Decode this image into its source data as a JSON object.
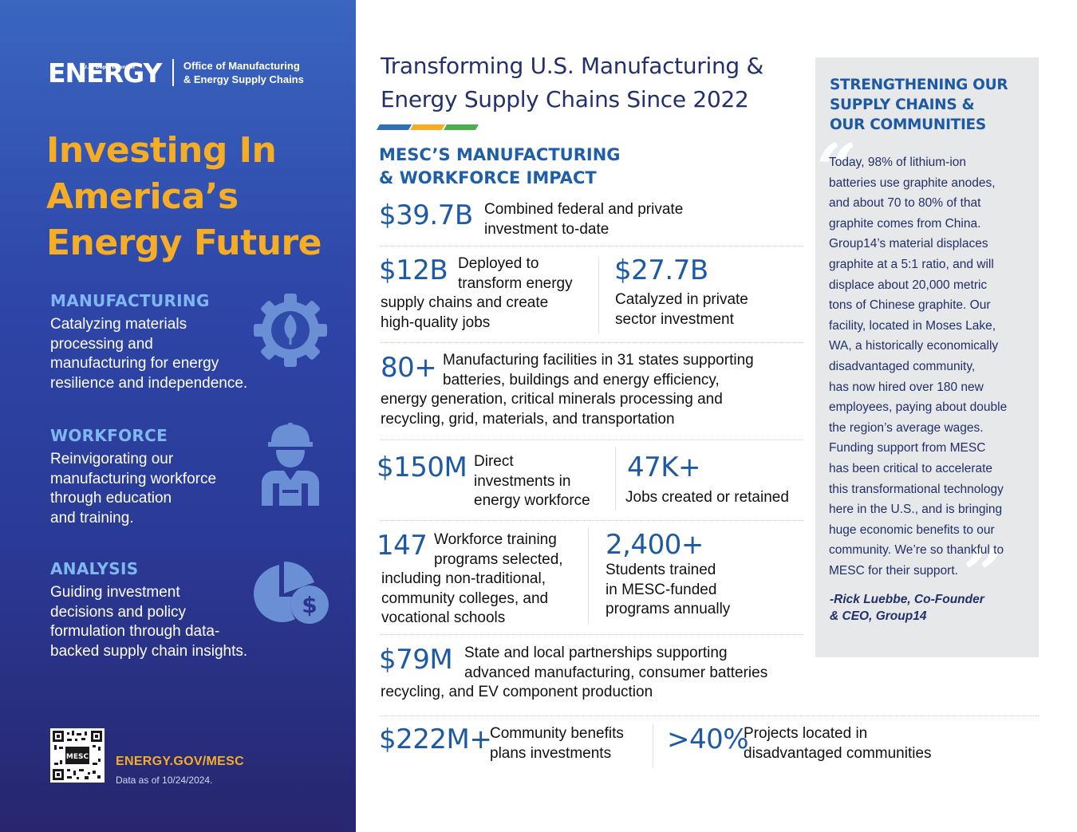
{
  "colors": {
    "accent_orange": "#f6ad26",
    "accent_blue": "#1e5aa3",
    "navy": "#24306b",
    "light_blue": "#7fb8f0"
  },
  "logo": {
    "dept": "U.S. Department of",
    "energy": "ENERGY",
    "office_line1": "Office of Manufacturing",
    "office_line2": "& Energy Supply Chains"
  },
  "hero": {
    "line1": "Investing In",
    "line2": "America’s",
    "line3": "Energy Future"
  },
  "sections": [
    {
      "title": "MANUFACTURING",
      "lines": [
        "Catalyzing materials",
        "processing and",
        "manufacturing for energy",
        "resilience and independence."
      ],
      "icon": "gear-leaf-icon"
    },
    {
      "title": "WORKFORCE",
      "lines": [
        "Reinvigorating our",
        "manufacturing workforce",
        "through education",
        "and training."
      ],
      "icon": "worker-icon"
    },
    {
      "title": "ANALYSIS",
      "lines": [
        "Guiding investment",
        "decisions and policy",
        "formulation through data-",
        "backed supply chain insights."
      ],
      "icon": "pie-dollar-icon"
    }
  ],
  "footer": {
    "qr_text": "MESC",
    "url": "ENERGY.GOV/MESC",
    "date": "Data as of 10/24/2024."
  },
  "title": {
    "line1": "Transforming U.S. Manufacturing &",
    "line2": "Energy Supply Chains Since 2022"
  },
  "bar_colors": [
    "#2f6fb8",
    "#f6ad26",
    "#4cae4c"
  ],
  "subhead": {
    "line1": "MESC’S MANUFACTURING",
    "line2": "& WORKFORCE IMPACT"
  },
  "stats": {
    "s1": {
      "value": "$39.7B",
      "lines": [
        "Combined federal and private",
        "investment to-date"
      ]
    },
    "s2": {
      "value": "$12B",
      "lines": [
        "Deployed to",
        "transform energy",
        "supply chains and create",
        "high-quality jobs"
      ]
    },
    "s3": {
      "value": "$27.7B",
      "lines": [
        "Catalyzed in private",
        "sector investment"
      ]
    },
    "s4": {
      "value": "80+",
      "lines": [
        "Manufacturing facilities in 31 states supporting",
        "batteries, buildings and energy efficiency,",
        "energy generation, critical minerals processing and",
        "recycling, grid, materials, and transportation"
      ]
    },
    "s5": {
      "value": "$150M",
      "lines": [
        "Direct",
        "investments in",
        "energy workforce"
      ]
    },
    "s6": {
      "value": "47K+",
      "lines": [
        "Jobs created or retained"
      ]
    },
    "s7": {
      "value": "147",
      "lines": [
        "Workforce training",
        "programs selected,",
        "including non-traditional,",
        "community colleges, and",
        "vocational schools"
      ]
    },
    "s8": {
      "value": "2,400+",
      "lines": [
        "Students trained",
        "in MESC-funded",
        "programs annually"
      ]
    },
    "s9": {
      "value": "$79M",
      "lines": [
        "State and local partnerships supporting",
        "advanced manufacturing, consumer batteries",
        "recycling, and EV component production"
      ]
    },
    "s10": {
      "value": "$222M+",
      "lines": [
        "Community benefits",
        "plans investments"
      ]
    },
    "s11": {
      "value": ">40%",
      "lines": [
        "Projects located in",
        "disadvantaged communities"
      ]
    }
  },
  "quote": {
    "head": [
      "STRENGTHENING OUR",
      "SUPPLY CHAINS &",
      "OUR COMMUNITIES"
    ],
    "lines": [
      "Today, 98% of lithium-ion",
      "batteries use graphite anodes,",
      "and about 70 to 80% of that",
      "graphite comes from China.",
      "Group14’s material displaces",
      "graphite at a 5:1 ratio, and will",
      "displace about 20,000 metric",
      "tons of Chinese graphite. Our",
      "facility, located in Moses Lake,",
      "WA, a historically economically",
      "disadvantaged community,",
      "has now hired over 180 new",
      "employees, paying about double",
      "the region’s average wages.",
      "Funding support from MESC",
      "has been critical to accelerate",
      "this transformational technology",
      "here in the U.S., and is bringing",
      "huge economic benefits to our",
      "community. We’re so thankful to",
      "MESC for their support."
    ],
    "author": [
      "-Rick Luebbe, Co-Founder",
      "& CEO, Group14"
    ]
  }
}
